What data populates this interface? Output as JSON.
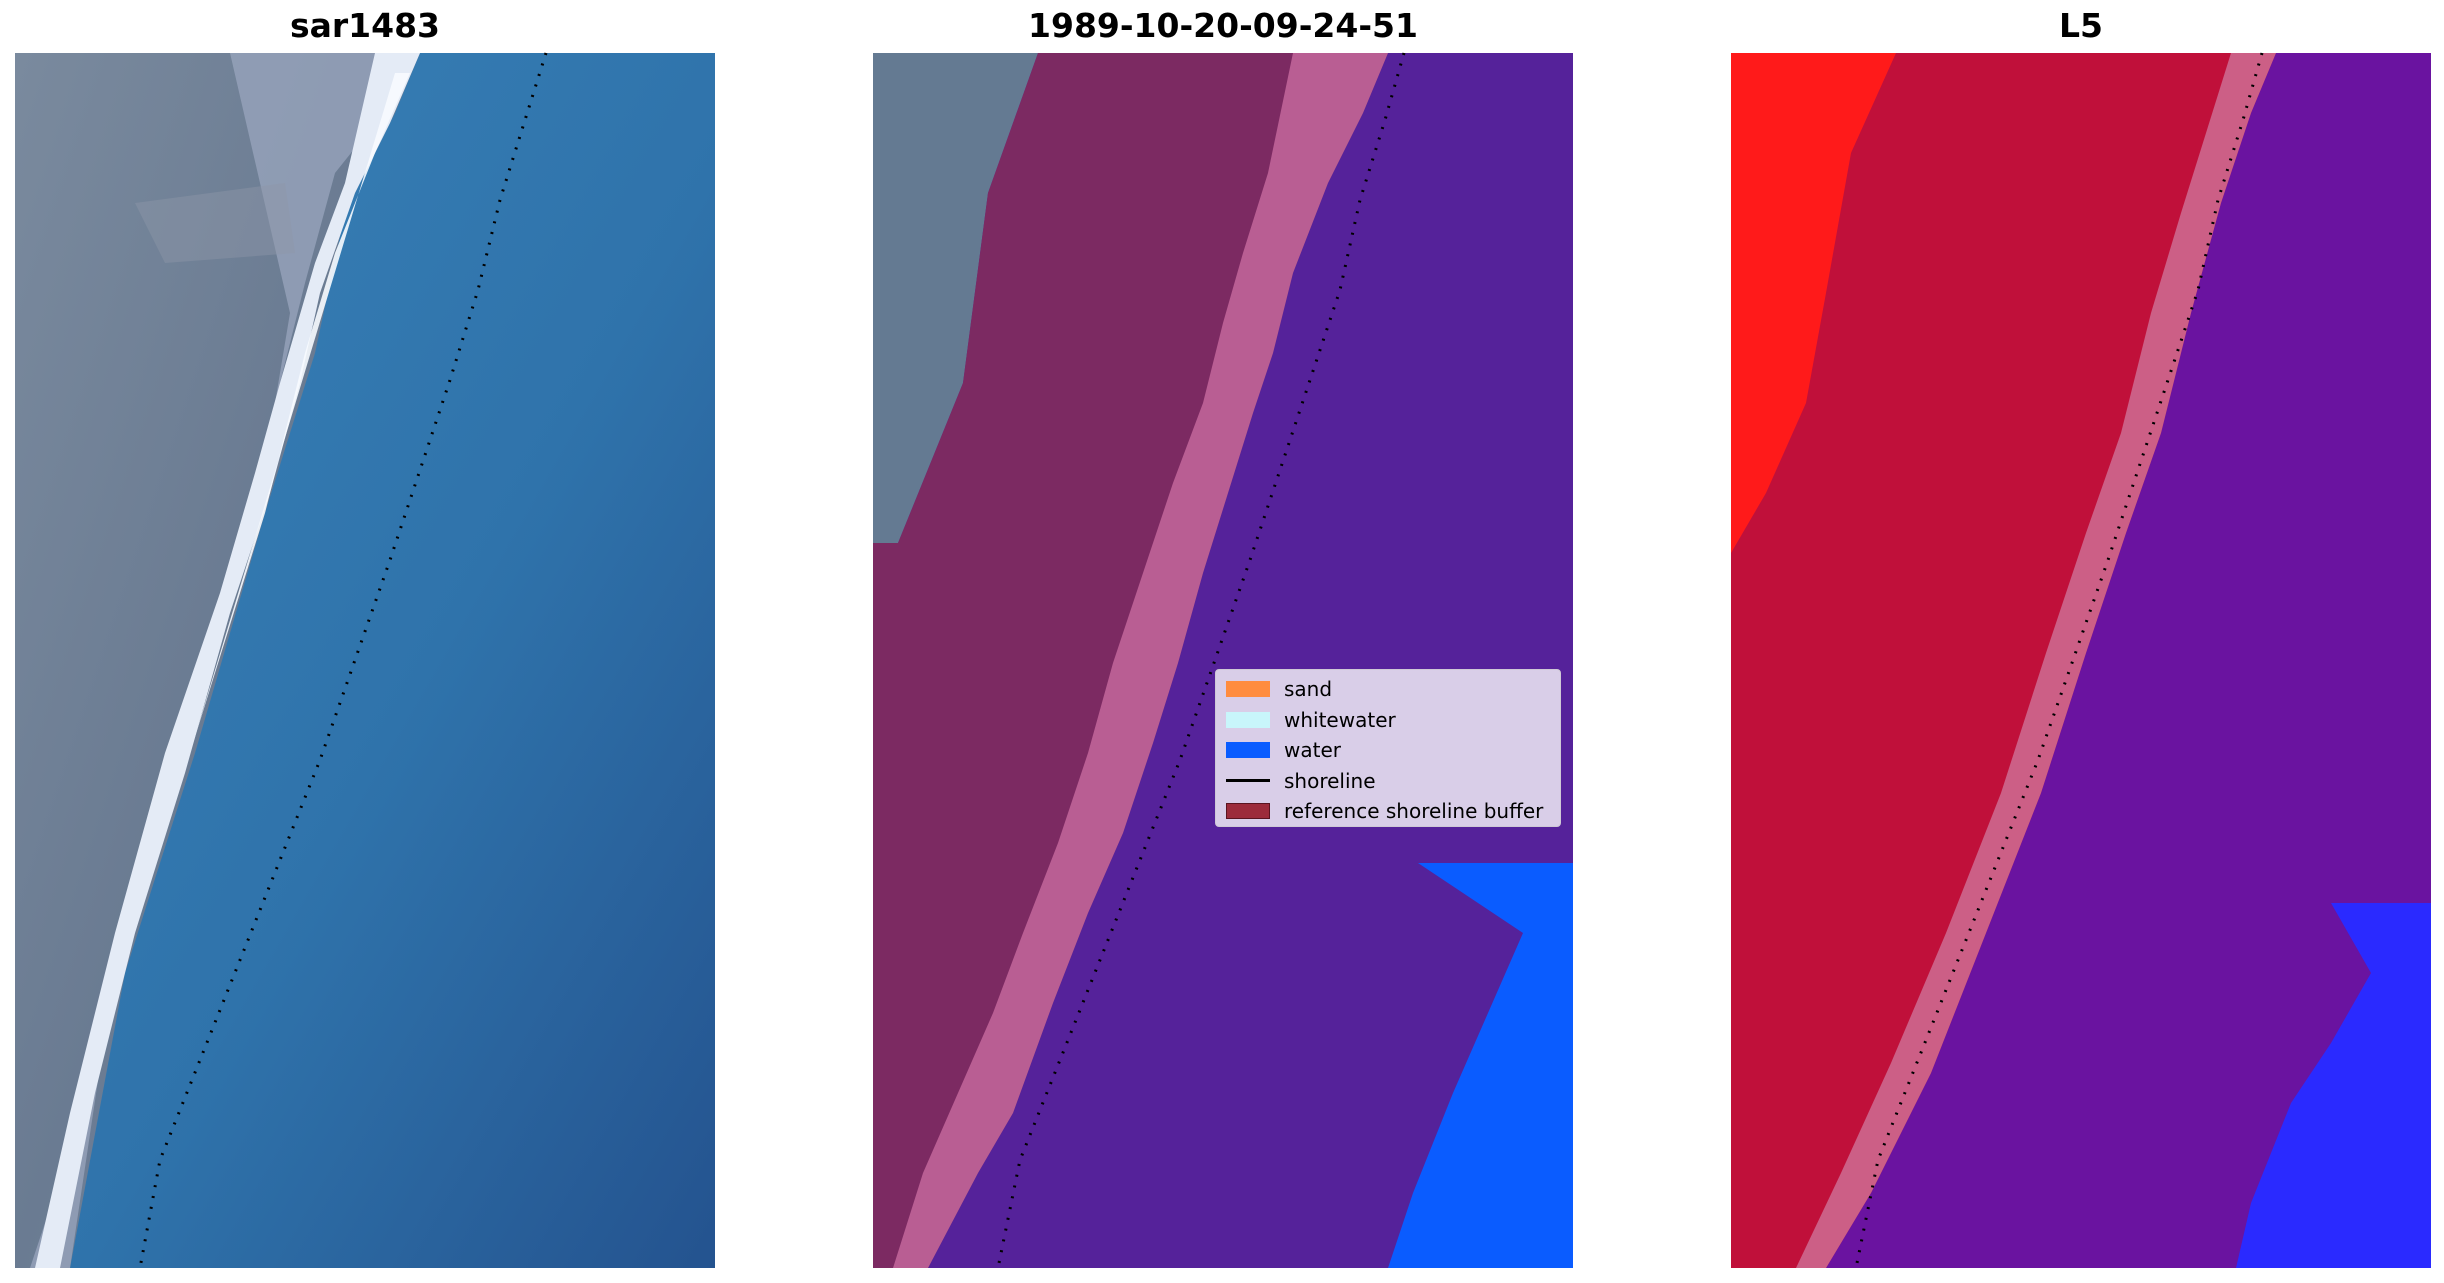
{
  "panels": [
    {
      "title": "sar1483",
      "kind": "rgb"
    },
    {
      "title": "1989-10-20-09-24-51",
      "kind": "classified"
    },
    {
      "title": "L5",
      "kind": "probability"
    }
  ],
  "legend": {
    "items": [
      {
        "label": "sand",
        "type": "patch",
        "color": "#ff8c3f"
      },
      {
        "label": "whitewater",
        "type": "patch",
        "color": "#c8f6fb"
      },
      {
        "label": "water",
        "type": "patch",
        "color": "#0a5cff"
      },
      {
        "label": "shoreline",
        "type": "line",
        "color": "#000000"
      },
      {
        "label": "reference shoreline buffer",
        "type": "patch",
        "color": "#9c2b3b"
      }
    ]
  },
  "colors": {
    "rgb_land": "#6f7f96",
    "rgb_surf": "#e8eef6",
    "rgb_water": "#2f6fa7",
    "buffer_overlay": "#8a2a5f",
    "buffer_surf": "#c4679c",
    "water_class": "#55229a",
    "open_water": "#0a5cff",
    "l5_land": "#ff1a1a",
    "l5_buffer": "#c0103a",
    "l5_water": "#6a13a0",
    "l5_open_water": "#2a2aff"
  }
}
